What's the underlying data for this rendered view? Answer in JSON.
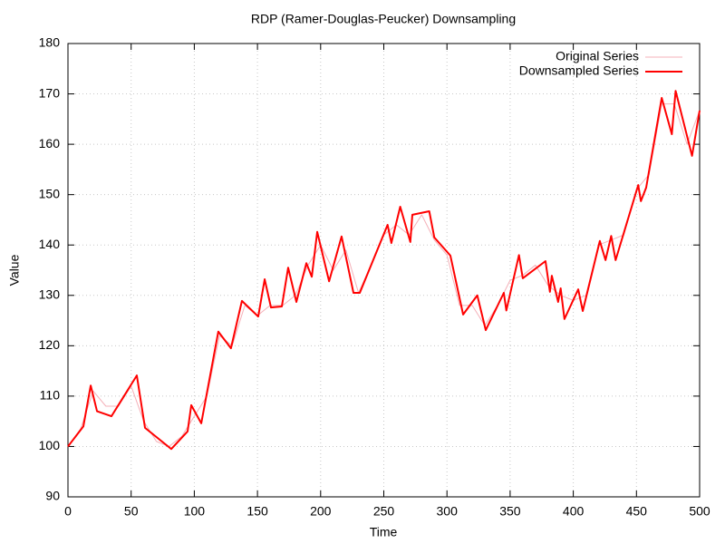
{
  "chart_data": {
    "type": "line",
    "title": "RDP (Ramer-Douglas-Peucker) Downsampling",
    "x_label": "Time",
    "y_label": "Value",
    "xlim": [
      0,
      500
    ],
    "xticks": [
      0,
      50,
      100,
      150,
      200,
      250,
      300,
      350,
      400,
      450,
      500
    ],
    "ylim": [
      90,
      180
    ],
    "yticks": [
      90,
      100,
      110,
      120,
      130,
      140,
      150,
      160,
      170,
      180
    ],
    "grid": true,
    "legend": "top-right",
    "series": [
      {
        "name": "Original Series",
        "color": "#f4b0b8",
        "width": 1,
        "x": [
          0,
          10,
          20,
          30,
          40,
          50,
          60,
          70,
          80,
          90,
          100,
          110,
          120,
          130,
          140,
          150,
          160,
          170,
          180,
          190,
          200,
          210,
          220,
          230,
          240,
          250,
          260,
          270,
          280,
          290,
          300,
          310,
          320,
          330,
          340,
          350,
          360,
          370,
          380,
          390,
          400,
          410,
          420,
          430,
          440,
          450,
          460,
          470,
          480,
          490,
          500
        ],
        "values": [
          100,
          103.5,
          111,
          108,
          108,
          112,
          105,
          101,
          100,
          102,
          106,
          110,
          122,
          120,
          128,
          126,
          128,
          128,
          130,
          136,
          140,
          135,
          139,
          130.5,
          136,
          142,
          144,
          142,
          146,
          141,
          138,
          128,
          128,
          124,
          128,
          133,
          134,
          136,
          132,
          130,
          129,
          130,
          140,
          141,
          142,
          151,
          154,
          168,
          168,
          160,
          166.7
        ]
      },
      {
        "name": "Downsampled Series",
        "color": "#ff0000",
        "width": 2,
        "x": [
          0,
          12.2,
          18,
          23,
          34.4,
          54.5,
          61,
          81.8,
          94.7,
          97.6,
          105.5,
          119,
          129,
          137.7,
          150.6,
          155.7,
          160.7,
          169.3,
          174.3,
          180.8,
          188.7,
          193,
          197.3,
          206.7,
          216.6,
          226,
          231,
          253,
          256,
          263,
          271,
          272.6,
          286,
          290,
          302.7,
          312.8,
          324,
          330.7,
          345,
          347,
          357,
          360,
          378,
          381.5,
          383,
          388,
          390,
          393,
          403.9,
          407.5,
          421,
          425.5,
          430,
          433.5,
          451.4,
          453.5,
          457.7,
          470,
          478,
          481,
          494,
          500
        ],
        "values": [
          100,
          104,
          112.1,
          107,
          106,
          114.1,
          103.7,
          99.5,
          103,
          108.2,
          104.6,
          122.8,
          119.5,
          128.9,
          125.8,
          133.2,
          127.6,
          127.8,
          135.5,
          128.7,
          136.4,
          133.7,
          142.6,
          132.8,
          141.7,
          130.5,
          130.5,
          144,
          140.4,
          147.6,
          140.6,
          146,
          146.7,
          141.5,
          137.9,
          126.2,
          130,
          123.1,
          130.5,
          127,
          138,
          133.4,
          136.8,
          130.7,
          133.9,
          128.7,
          131.4,
          125.3,
          131.2,
          126.9,
          140.8,
          137,
          141.8,
          137,
          151.9,
          148.7,
          151.4,
          169.2,
          162,
          170.6,
          157.7,
          166.7
        ]
      }
    ]
  }
}
